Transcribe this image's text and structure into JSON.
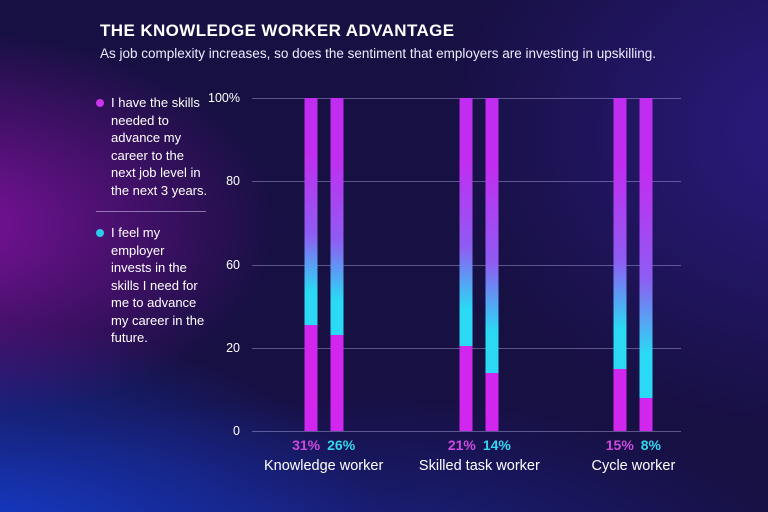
{
  "header": {
    "title": "THE KNOWLEDGE WORKER ADVANTAGE",
    "subtitle": "As job complexity increases, so does the sentiment that employers are investing in upskilling."
  },
  "legend": {
    "items": [
      {
        "label": "I have the skills needed to advance my career to the next job level in the next 3 years.",
        "dot_color": "#cb36ea"
      },
      {
        "label": "I feel my employer invests in the skills I need for me to advance my career in the future.",
        "dot_color": "#2fc9ea"
      }
    ]
  },
  "colors": {
    "magenta_accent": "#cd49e0",
    "cyan_accent": "#35d7ee",
    "text": "#ffffff"
  },
  "chart_data": {
    "type": "bar",
    "title": "THE KNOWLEDGE WORKER ADVANTAGE",
    "subtitle": "As job complexity increases, so does the sentiment that employers are investing in upskilling.",
    "categories": [
      "Knowledge worker",
      "Skilled task worker",
      "Cycle worker"
    ],
    "series": [
      {
        "name": "I have the skills needed to advance my career to the next job level in the next 3 years.",
        "values": [
          31,
          21,
          15
        ],
        "value_labels": [
          "31%",
          "21%",
          "15%"
        ],
        "label_color": "#cd49e0"
      },
      {
        "name": "I feel my employer invests in the skills I need for me to advance my career in the future.",
        "values": [
          26,
          14,
          8
        ],
        "value_labels": [
          "26%",
          "14%",
          "8%"
        ],
        "label_color": "#35d7ee"
      }
    ],
    "ylim": [
      0,
      100
    ],
    "yaxis": {
      "ticks": [
        {
          "value": 100,
          "label": "100%"
        },
        {
          "value": 80,
          "label": "80"
        },
        {
          "value": 60,
          "label": "60"
        },
        {
          "value": 20,
          "label": "20"
        },
        {
          "value": 0,
          "label": "0"
        }
      ]
    },
    "grid": true,
    "legend_position": "left",
    "bar_colors": {
      "gradient_top": "#c12df0",
      "gradient_mid": "#8f5cf2",
      "gradient_cyan": "#2bd9f4",
      "solid_bottom": "#d026ee"
    }
  }
}
